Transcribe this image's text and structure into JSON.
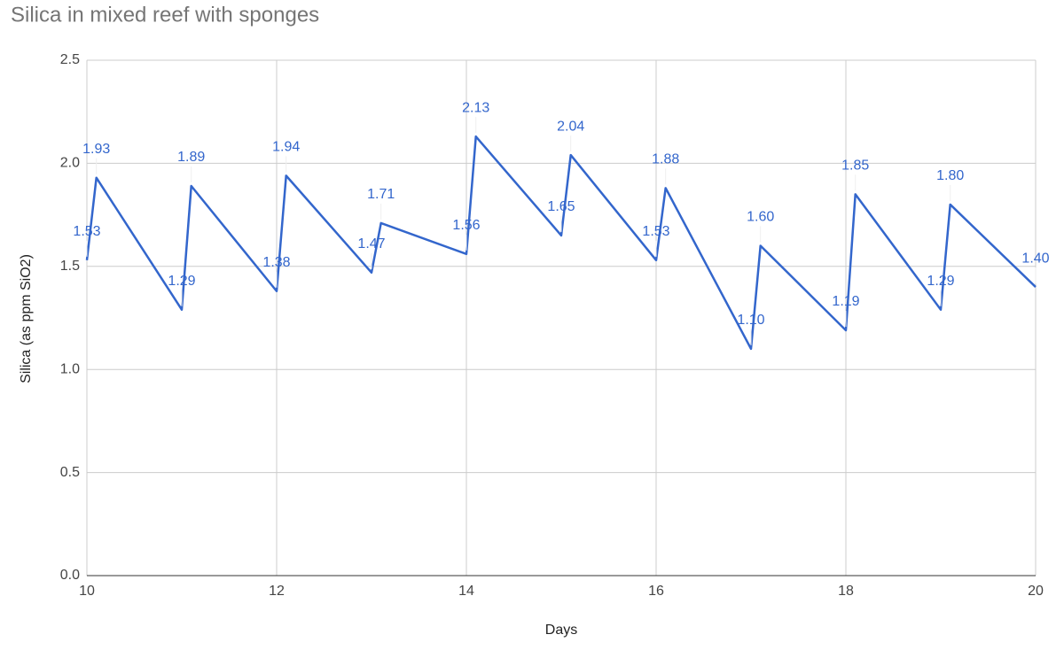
{
  "chart_data": {
    "type": "line",
    "title": "Silica in mixed reef with sponges",
    "x_label": "Days",
    "y_label": "Silica (as ppm SiO2)",
    "x": [
      10,
      10.1,
      11,
      11.1,
      12,
      12.1,
      13,
      13.1,
      14,
      14.1,
      15,
      15.1,
      16,
      16.1,
      17,
      17.1,
      18,
      18.1,
      19,
      19.1,
      20
    ],
    "values": [
      1.53,
      1.93,
      1.29,
      1.89,
      1.38,
      1.94,
      1.47,
      1.71,
      1.56,
      2.13,
      1.65,
      2.04,
      1.53,
      1.88,
      1.1,
      1.6,
      1.19,
      1.85,
      1.29,
      1.8,
      1.4
    ],
    "value_labels": [
      "1.53",
      "1.93",
      "1.29",
      "1.89",
      "1.38",
      "1.94",
      "1.47",
      "1.71",
      "1.56",
      "2.13",
      "1.65",
      "2.04",
      "1.53",
      "1.88",
      "1.10",
      "1.60",
      "1.19",
      "1.85",
      "1.29",
      "1.80",
      "1.40"
    ],
    "color": "#3366cc",
    "xlim": [
      10,
      20
    ],
    "xticks": [
      10,
      12,
      14,
      16,
      18,
      20
    ],
    "ylim": [
      0,
      2.5
    ],
    "yticks": [
      {
        "value": 0,
        "label": "0.0"
      },
      0.5,
      {
        "value": 1,
        "label": "1.0"
      },
      1.5,
      {
        "value": 2,
        "label": "2.0"
      },
      2.5
    ],
    "grid": true
  }
}
